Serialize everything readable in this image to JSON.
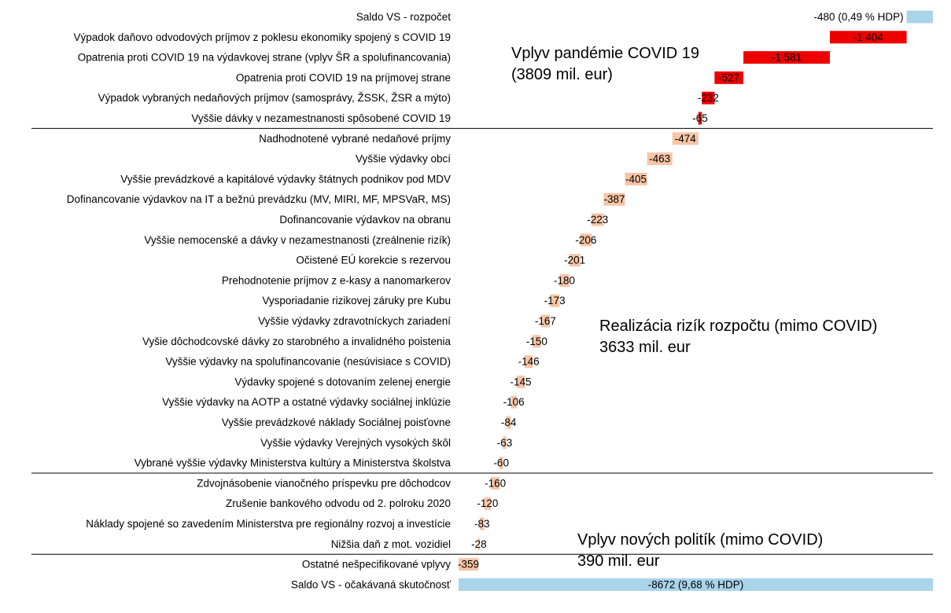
{
  "chart_data": {
    "type": "bar",
    "subtype": "waterfall-horizontal",
    "title": "",
    "xlabel": "",
    "ylabel": "",
    "unit": "mil. eur",
    "colors": {
      "total": "#a9d4ea",
      "covid": "#ee0000",
      "risk": "#f7c4a5",
      "separator": "#000000"
    },
    "rows": [
      {
        "category": "Saldo VS - rozpočet",
        "value": -480,
        "label": "-480 (0,49 % HDP)",
        "group": "total"
      },
      {
        "category": "Výpadok daňovo odvodových príjmov z poklesu ekonomiky spojený s COVID 19",
        "value": -1404,
        "label": "-1 404",
        "group": "covid"
      },
      {
        "category": "Opatrenia proti COVID 19 na výdavkovej strane (vplyv ŠR a spolufinancovania)",
        "value": -1581,
        "label": "-1 581",
        "group": "covid"
      },
      {
        "category": "Opatrenia proti COVID 19 na príjmovej strane",
        "value": -527,
        "label": "-527",
        "group": "covid"
      },
      {
        "category": "Výpadok vybraných nedaňových príjmov (samosprávy, ŽSSK, ŽSR a mýto)",
        "value": -232,
        "label": "-232",
        "group": "covid"
      },
      {
        "category": "Vyššie dávky v nezamestnanosti spôsobené COVID 19",
        "value": -65,
        "label": "-65",
        "group": "covid"
      },
      {
        "category": "Nadhodnotené vybrané nedaňové príjmy",
        "value": -474,
        "label": "-474",
        "group": "risk"
      },
      {
        "category": "Vyššie výdavky obcí",
        "value": -463,
        "label": "-463",
        "group": "risk"
      },
      {
        "category": "Vyššie prevádzkové a kapitálové  výdavky štátnych podnikov pod MDV",
        "value": -405,
        "label": "-405",
        "group": "risk"
      },
      {
        "category": "Dofinancovanie výdavkov na IT a bežnú prevádzku (MV, MIRI, MF, MPSVaR, MS)",
        "value": -387,
        "label": "-387",
        "group": "risk"
      },
      {
        "category": "Dofinancovanie výdavkov na obranu",
        "value": -223,
        "label": "-223",
        "group": "risk"
      },
      {
        "category": "Vyššie nemocenské a dávky v nezamestnanosti (zreálnenie rizík)",
        "value": -206,
        "label": "-206",
        "group": "risk"
      },
      {
        "category": "Očistené EÚ korekcie s rezervou",
        "value": -201,
        "label": "-201",
        "group": "risk"
      },
      {
        "category": "Prehodnotenie príjmov z e-kasy a nanomarkerov",
        "value": -180,
        "label": "-180",
        "group": "risk"
      },
      {
        "category": "Vysporiadanie rizikovej záruky pre Kubu",
        "value": -173,
        "label": "-173",
        "group": "risk"
      },
      {
        "category": "Vyššie výdavky zdravotníckych zariadení",
        "value": -167,
        "label": "-167",
        "group": "risk"
      },
      {
        "category": "Vyšie dôchodcovské dávky zo starobného a invalidného poistenia",
        "value": -150,
        "label": "-150",
        "group": "risk"
      },
      {
        "category": "Vyššie výdavky na spolufinancovanie (nesúvisiace s COVID)",
        "value": -146,
        "label": "-146",
        "group": "risk"
      },
      {
        "category": "Výdavky spojené s dotovaním zelenej energie",
        "value": -145,
        "label": "-145",
        "group": "risk"
      },
      {
        "category": "Vyššie výdavky na AOTP a ostatné výdavky sociálnej inklúzie",
        "value": -106,
        "label": "-106",
        "group": "risk"
      },
      {
        "category": "Vyššie prevádzkové náklady Sociálnej poisťovne",
        "value": -84,
        "label": "-84",
        "group": "risk"
      },
      {
        "category": "Vyššie výdavky Verejných vysokých škôl",
        "value": -63,
        "label": "-63",
        "group": "risk"
      },
      {
        "category": "Vybrané vyššie výdavky Ministerstva kultúry a Ministerstva školstva",
        "value": -60,
        "label": "-60",
        "group": "risk"
      },
      {
        "category": "Zdvojnásobenie vianočného príspevku pre dôchodcov",
        "value": -160,
        "label": "-160",
        "group": "policy"
      },
      {
        "category": "Zrušenie bankového odvodu od 2. polroku 2020",
        "value": -120,
        "label": "-120",
        "group": "policy"
      },
      {
        "category": "Náklady spojené so zavedením Ministerstva pre regionálny rozvoj a investície",
        "value": -83,
        "label": "-83",
        "group": "policy"
      },
      {
        "category": "Nižšia daň z mot. vozidiel",
        "value": -28,
        "label": "-28",
        "group": "policy"
      },
      {
        "category": "Ostatné nešpecifikované vplyvy",
        "value": -359,
        "label": "-359",
        "group": "other"
      },
      {
        "category": "Saldo VS - očakávaná skutočnosť",
        "value": -8672,
        "label": "-8672 (9,68 % HDP)",
        "group": "total"
      }
    ],
    "annotations": [
      {
        "name": "covid",
        "lines": [
          "Vplyv pandémie COVID 19",
          "(3809 mil. eur)"
        ]
      },
      {
        "name": "risks",
        "lines": [
          "Realizácia rizík rozpočtu (mimo COVID)",
          "3633 mil. eur"
        ]
      },
      {
        "name": "policies",
        "lines": [
          "Vplyv nových politík (mimo COVID)",
          "390 mil. eur"
        ]
      }
    ],
    "grid": false,
    "legend": "none"
  }
}
